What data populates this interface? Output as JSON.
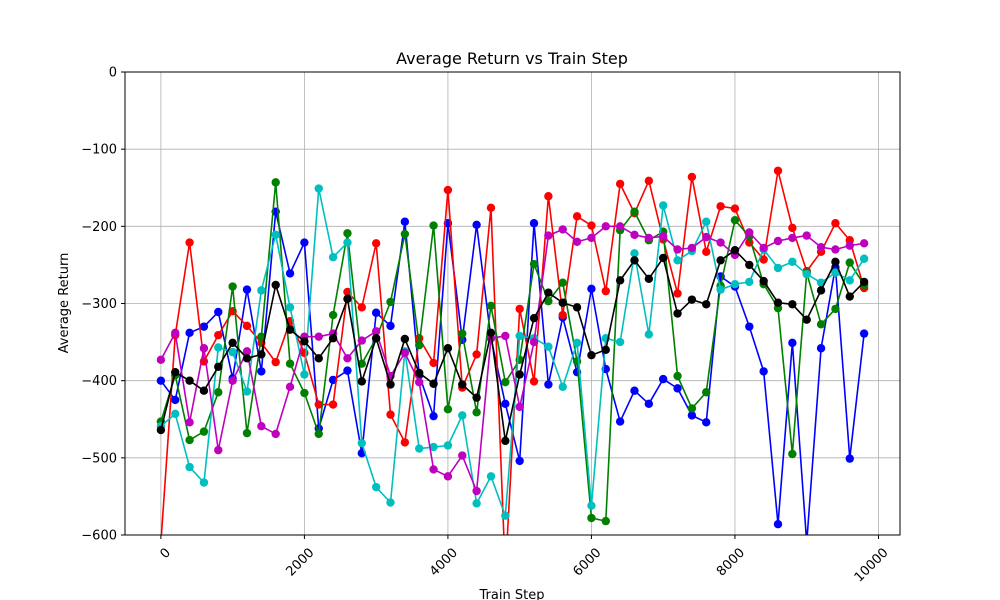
{
  "chart_data": {
    "type": "line",
    "title": "Average Return vs Train Step",
    "xlabel": "Train Step",
    "ylabel": "Average Return",
    "xlim": [
      -500,
      10300
    ],
    "ylim": [
      -600,
      0
    ],
    "xticks": [
      0,
      2000,
      4000,
      6000,
      8000,
      10000
    ],
    "xtick_labels": [
      "0",
      "2000",
      "4000",
      "6000",
      "8000",
      "10000"
    ],
    "yticks": [
      0,
      -100,
      -200,
      -300,
      -400,
      -500,
      -600
    ],
    "ytick_labels": [
      "0",
      "−100",
      "−200",
      "−300",
      "−400",
      "−500",
      "−600"
    ],
    "grid": true,
    "x": [
      0,
      200,
      400,
      600,
      800,
      1000,
      1200,
      1400,
      1600,
      1800,
      2000,
      2200,
      2400,
      2600,
      2800,
      3000,
      3200,
      3400,
      3600,
      3800,
      4000,
      4200,
      4400,
      4600,
      4800,
      5000,
      5200,
      5400,
      5600,
      5800,
      6000,
      6200,
      6400,
      6600,
      6800,
      7000,
      7200,
      7400,
      7600,
      7800,
      8000,
      8200,
      8400,
      8600,
      8800,
      9000,
      9200,
      9400,
      9600,
      9800
    ],
    "series": [
      {
        "color": "#0000ff",
        "values": [
          -400,
          -425,
          -338,
          -330,
          -311,
          -397,
          -282,
          -388,
          -181,
          -261,
          -221,
          -462,
          -399,
          -387,
          -494,
          -312,
          -329,
          -194,
          -393,
          -446,
          -196,
          -347,
          -198,
          -345,
          -430,
          -504,
          -196,
          -405,
          -318,
          -389,
          -281,
          -385,
          -453,
          -413,
          -430,
          -398,
          -410,
          -445,
          -454,
          -265,
          -278,
          -330,
          -388,
          -586,
          -351,
          -610,
          -358,
          -253,
          -501,
          -339
        ]
      },
      {
        "color": "#ff0000",
        "values": [
          -610,
          -341,
          -221,
          -375,
          -341,
          -310,
          -329,
          -351,
          -376,
          -323,
          -364,
          -431,
          -431,
          -285,
          -305,
          -222,
          -444,
          -480,
          -345,
          -377,
          -153,
          -409,
          -366,
          -176,
          -650,
          -307,
          -401,
          -161,
          -315,
          -187,
          -199,
          -284,
          -145,
          -183,
          -141,
          -217,
          -287,
          -136,
          -233,
          -174,
          -177,
          -221,
          -243,
          -128,
          -202,
          -258,
          -233,
          -196,
          -218,
          -280
        ]
      },
      {
        "color": "#008000",
        "values": [
          -453,
          -393,
          -477,
          -466,
          -415,
          -278,
          -468,
          -343,
          -143,
          -378,
          -416,
          -469,
          -315,
          -209,
          -378,
          -345,
          -298,
          -210,
          -354,
          -199,
          -437,
          -339,
          -441,
          -303,
          -402,
          -373,
          -249,
          -297,
          -273,
          -375,
          -578,
          -582,
          -205,
          -181,
          -218,
          -207,
          -394,
          -436,
          -415,
          -277,
          -192,
          -213,
          -275,
          -306,
          -495,
          -260,
          -327,
          -307,
          -247,
          -276
        ]
      },
      {
        "color": "#00bfbf",
        "values": [
          -459,
          -443,
          -512,
          -532,
          -357,
          -363,
          -414,
          -283,
          -211,
          -305,
          -392,
          -151,
          -240,
          -221,
          -481,
          -538,
          -558,
          -362,
          -488,
          -486,
          -484,
          -445,
          -559,
          -524,
          -575,
          -342,
          -345,
          -356,
          -408,
          -351,
          -562,
          -345,
          -350,
          -235,
          -340,
          -173,
          -244,
          -232,
          -194,
          -282,
          -275,
          -272,
          -230,
          -254,
          -246,
          -262,
          -273,
          -260,
          -270,
          -242
        ]
      },
      {
        "color": "#bf00bf",
        "values": [
          -373,
          -338,
          -454,
          -358,
          -490,
          -400,
          -362,
          -459,
          -469,
          -408,
          -343,
          -343,
          -339,
          -371,
          -348,
          -336,
          -394,
          -364,
          -402,
          -515,
          -524,
          -497,
          -543,
          -345,
          -342,
          -434,
          -350,
          -212,
          -204,
          -220,
          -215,
          -200,
          -200,
          -211,
          -215,
          -213,
          -230,
          -228,
          -214,
          -221,
          -237,
          -208,
          -228,
          -219,
          -215,
          -212,
          -227,
          -230,
          -225,
          -222
        ]
      },
      {
        "color": "#000000",
        "values": [
          -464,
          -389,
          -400,
          -413,
          -382,
          -351,
          -371,
          -366,
          -276,
          -334,
          -349,
          -371,
          -345,
          -294,
          -401,
          -345,
          -405,
          -346,
          -390,
          -404,
          -358,
          -405,
          -422,
          -338,
          -478,
          -392,
          -319,
          -286,
          -299,
          -305,
          -367,
          -360,
          -270,
          -244,
          -268,
          -241,
          -313,
          -295,
          -301,
          -244,
          -231,
          -250,
          -271,
          -299,
          -301,
          -321,
          -283,
          -246,
          -291,
          -272
        ]
      }
    ]
  }
}
